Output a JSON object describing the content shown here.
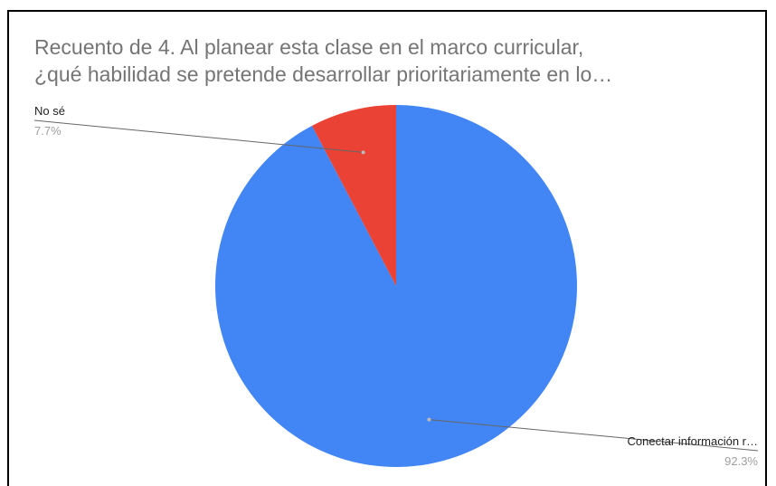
{
  "chart_data": {
    "type": "pie",
    "title_lines": [
      "Recuento de 4. Al planear esta clase en el marco curricular,",
      "¿qué habilidad se pretende desarrollar prioritariamente en lo…"
    ],
    "categories": [
      "Conectar información r…",
      "No sé"
    ],
    "values": [
      92.3,
      7.7
    ],
    "value_labels": [
      "92.3%",
      "7.7%"
    ],
    "colors": [
      "#4285f4",
      "#ea4335"
    ]
  }
}
